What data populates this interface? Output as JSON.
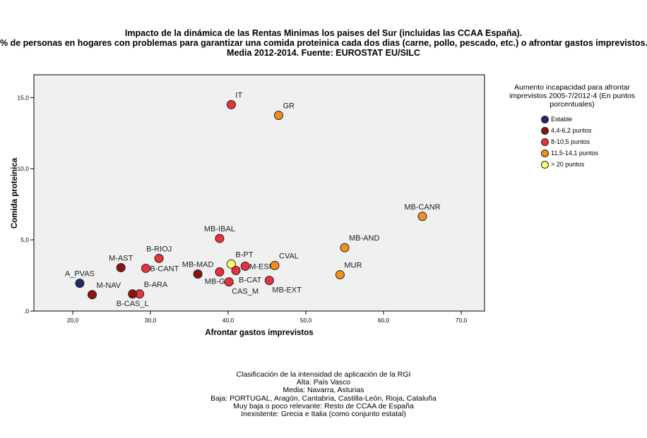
{
  "title_lines": [
    "Impacto de la dinámica de las Rentas Minimas los paises del Sur (incluidas las CCAA España).",
    "% de personas en hogares con problemas para garantizar una comida proteinica cada dos dias (carne, pollo, pescado, etc.) o afrontar gastos imprevistos.",
    "Media 2012-2014. Fuente: EUROSTAT EU/SILC"
  ],
  "legend": {
    "title_lines": [
      "Aumento incapacidad para afrontar",
      "imprevistos 2005-7/2012-4 (En puntos",
      "porcentuales)"
    ],
    "items": [
      {
        "label": "Estable",
        "color": "#1f2a6e"
      },
      {
        "label": "4,4-6,2 puntos",
        "color": "#8b1414"
      },
      {
        "label": "8-10,5 puntos",
        "color": "#e8323c"
      },
      {
        "label": "11,5-14,1 puntos",
        "color": "#f0901e"
      },
      {
        "label": "> 20 puntos",
        "color": "#ffff70"
      }
    ]
  },
  "footer_lines": [
    "Clasificación de la intensidad de aplicación de la RGI",
    "Alta: País Vasco",
    "Media: Navarra, Asturias",
    "Baja: PORTUGAL, Aragón, Cantabria, Castilla-León, Rioja, Cataluña",
    "Muy baja o poco relevante: Resto de CCAA de España",
    "Inexistente: Grecia e Italia (como conjunto estatal)"
  ],
  "chart_data": {
    "type": "scatter",
    "title": "Impacto de la dinámica de las Rentas Minimas los paises del Sur (incluidas las CCAA España).",
    "xlabel": "Afrontar gastos imprevistos",
    "ylabel": "Comida proteinica",
    "xlim": [
      15.0,
      73.0
    ],
    "ylim": [
      0,
      16.6
    ],
    "xticks": [
      20,
      30,
      40,
      50,
      60,
      70
    ],
    "xtick_labels": [
      "20,0",
      "30,0",
      "40,0",
      "50,0",
      "60,0",
      "70,0"
    ],
    "yticks": [
      0,
      5,
      10,
      15
    ],
    "ytick_labels": [
      ",0",
      "5,0",
      "10,0",
      "15,0"
    ],
    "grid": false,
    "legend_position": "right",
    "points": [
      {
        "label": "A_PVAS",
        "x": 20.9,
        "y": 1.95,
        "group": 0,
        "anchor": "above"
      },
      {
        "label": "M-NAV",
        "x": 22.5,
        "y": 1.15,
        "group": 1,
        "anchor": "above-right"
      },
      {
        "label": "M-AST",
        "x": 26.2,
        "y": 3.05,
        "group": 1,
        "anchor": "above"
      },
      {
        "label": "B-ARA",
        "x": 28.6,
        "y": 1.2,
        "group": 2,
        "anchor": "above-right"
      },
      {
        "label": "B-CAS_L",
        "x": 27.7,
        "y": 1.2,
        "group": 1,
        "anchor": "below"
      },
      {
        "label": "B-CANT",
        "x": 29.4,
        "y": 3.0,
        "group": 2,
        "anchor": "right"
      },
      {
        "label": "B-RIOJ",
        "x": 31.1,
        "y": 3.7,
        "group": 2,
        "anchor": "above"
      },
      {
        "label": "MB-MAD",
        "x": 36.1,
        "y": 2.6,
        "group": 1,
        "anchor": "above"
      },
      {
        "label": "MB-GAL",
        "x": 38.9,
        "y": 2.75,
        "group": 2,
        "anchor": "below"
      },
      {
        "label": "MB-IBAL",
        "x": 38.9,
        "y": 5.1,
        "group": 2,
        "anchor": "above"
      },
      {
        "label": "B-PT",
        "x": 40.4,
        "y": 3.3,
        "group": 4,
        "anchor": "above-right"
      },
      {
        "label": "CAS_M",
        "x": 40.1,
        "y": 2.05,
        "group": 2,
        "anchor": "below-right"
      },
      {
        "label": "B-CAT",
        "x": 41.0,
        "y": 2.85,
        "group": 2,
        "anchor": "below-right"
      },
      {
        "label": "M-ESP",
        "x": 42.2,
        "y": 3.15,
        "group": 2,
        "anchor": "right"
      },
      {
        "label": "CVAL",
        "x": 46.0,
        "y": 3.2,
        "group": 3,
        "anchor": "above-right"
      },
      {
        "label": "MB-EXT",
        "x": 45.3,
        "y": 2.15,
        "group": 2,
        "anchor": "below-right"
      },
      {
        "label": "IT",
        "x": 40.4,
        "y": 14.5,
        "group": 2,
        "anchor": "above-right"
      },
      {
        "label": "GR",
        "x": 46.5,
        "y": 13.75,
        "group": 3,
        "anchor": "above-right"
      },
      {
        "label": "MB-CANR",
        "x": 65.0,
        "y": 6.65,
        "group": 3,
        "anchor": "above"
      },
      {
        "label": "MB-AND",
        "x": 55.0,
        "y": 4.45,
        "group": 3,
        "anchor": "above-right"
      },
      {
        "label": "MUR",
        "x": 54.4,
        "y": 2.55,
        "group": 3,
        "anchor": "above-right"
      }
    ]
  }
}
